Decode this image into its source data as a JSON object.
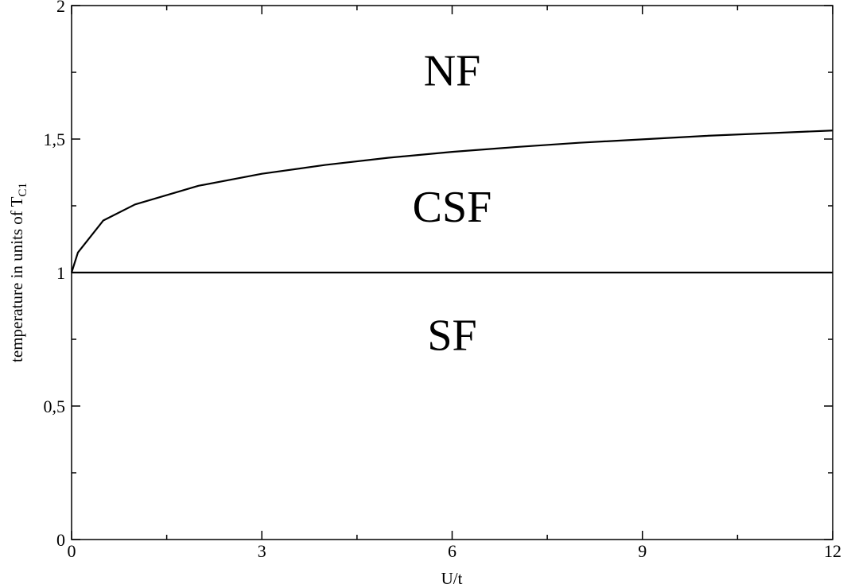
{
  "chart_data": {
    "type": "line",
    "xlabel": "U/t",
    "ylabel_prefix": "temperature in units of T",
    "ylabel_subscript": "C1",
    "xlim": [
      0,
      12
    ],
    "ylim": [
      0,
      2
    ],
    "x_ticks": [
      {
        "value": 0,
        "label": "0"
      },
      {
        "value": 3,
        "label": "3"
      },
      {
        "value": 6,
        "label": "6"
      },
      {
        "value": 9,
        "label": "9"
      },
      {
        "value": 12,
        "label": "12"
      }
    ],
    "y_ticks": [
      {
        "value": 0,
        "label": "0"
      },
      {
        "value": 0.5,
        "label": "0,5"
      },
      {
        "value": 1,
        "label": "1"
      },
      {
        "value": 1.5,
        "label": "1,5"
      },
      {
        "value": 2,
        "label": "2"
      }
    ],
    "x_minor_step": 1.5,
    "y_minor_step": 0.25,
    "grid": false,
    "series": [
      {
        "x": [
          0,
          0.1,
          0.5,
          1,
          2,
          3,
          4,
          5,
          6,
          7,
          8,
          9,
          10,
          11,
          12
        ],
        "y": [
          1.0,
          1.075,
          1.195,
          1.255,
          1.325,
          1.37,
          1.403,
          1.43,
          1.452,
          1.47,
          1.486,
          1.499,
          1.512,
          1.522,
          1.532
        ],
        "color": "#000000"
      },
      {
        "x": [
          0,
          12
        ],
        "y": [
          1.0,
          1.0
        ],
        "color": "#000000"
      }
    ],
    "annotations": [
      {
        "text": "NF",
        "x": 6,
        "y": 1.76
      },
      {
        "text": "CSF",
        "x": 6,
        "y": 1.25
      },
      {
        "text": "SF",
        "x": 6,
        "y": 0.77
      }
    ]
  }
}
